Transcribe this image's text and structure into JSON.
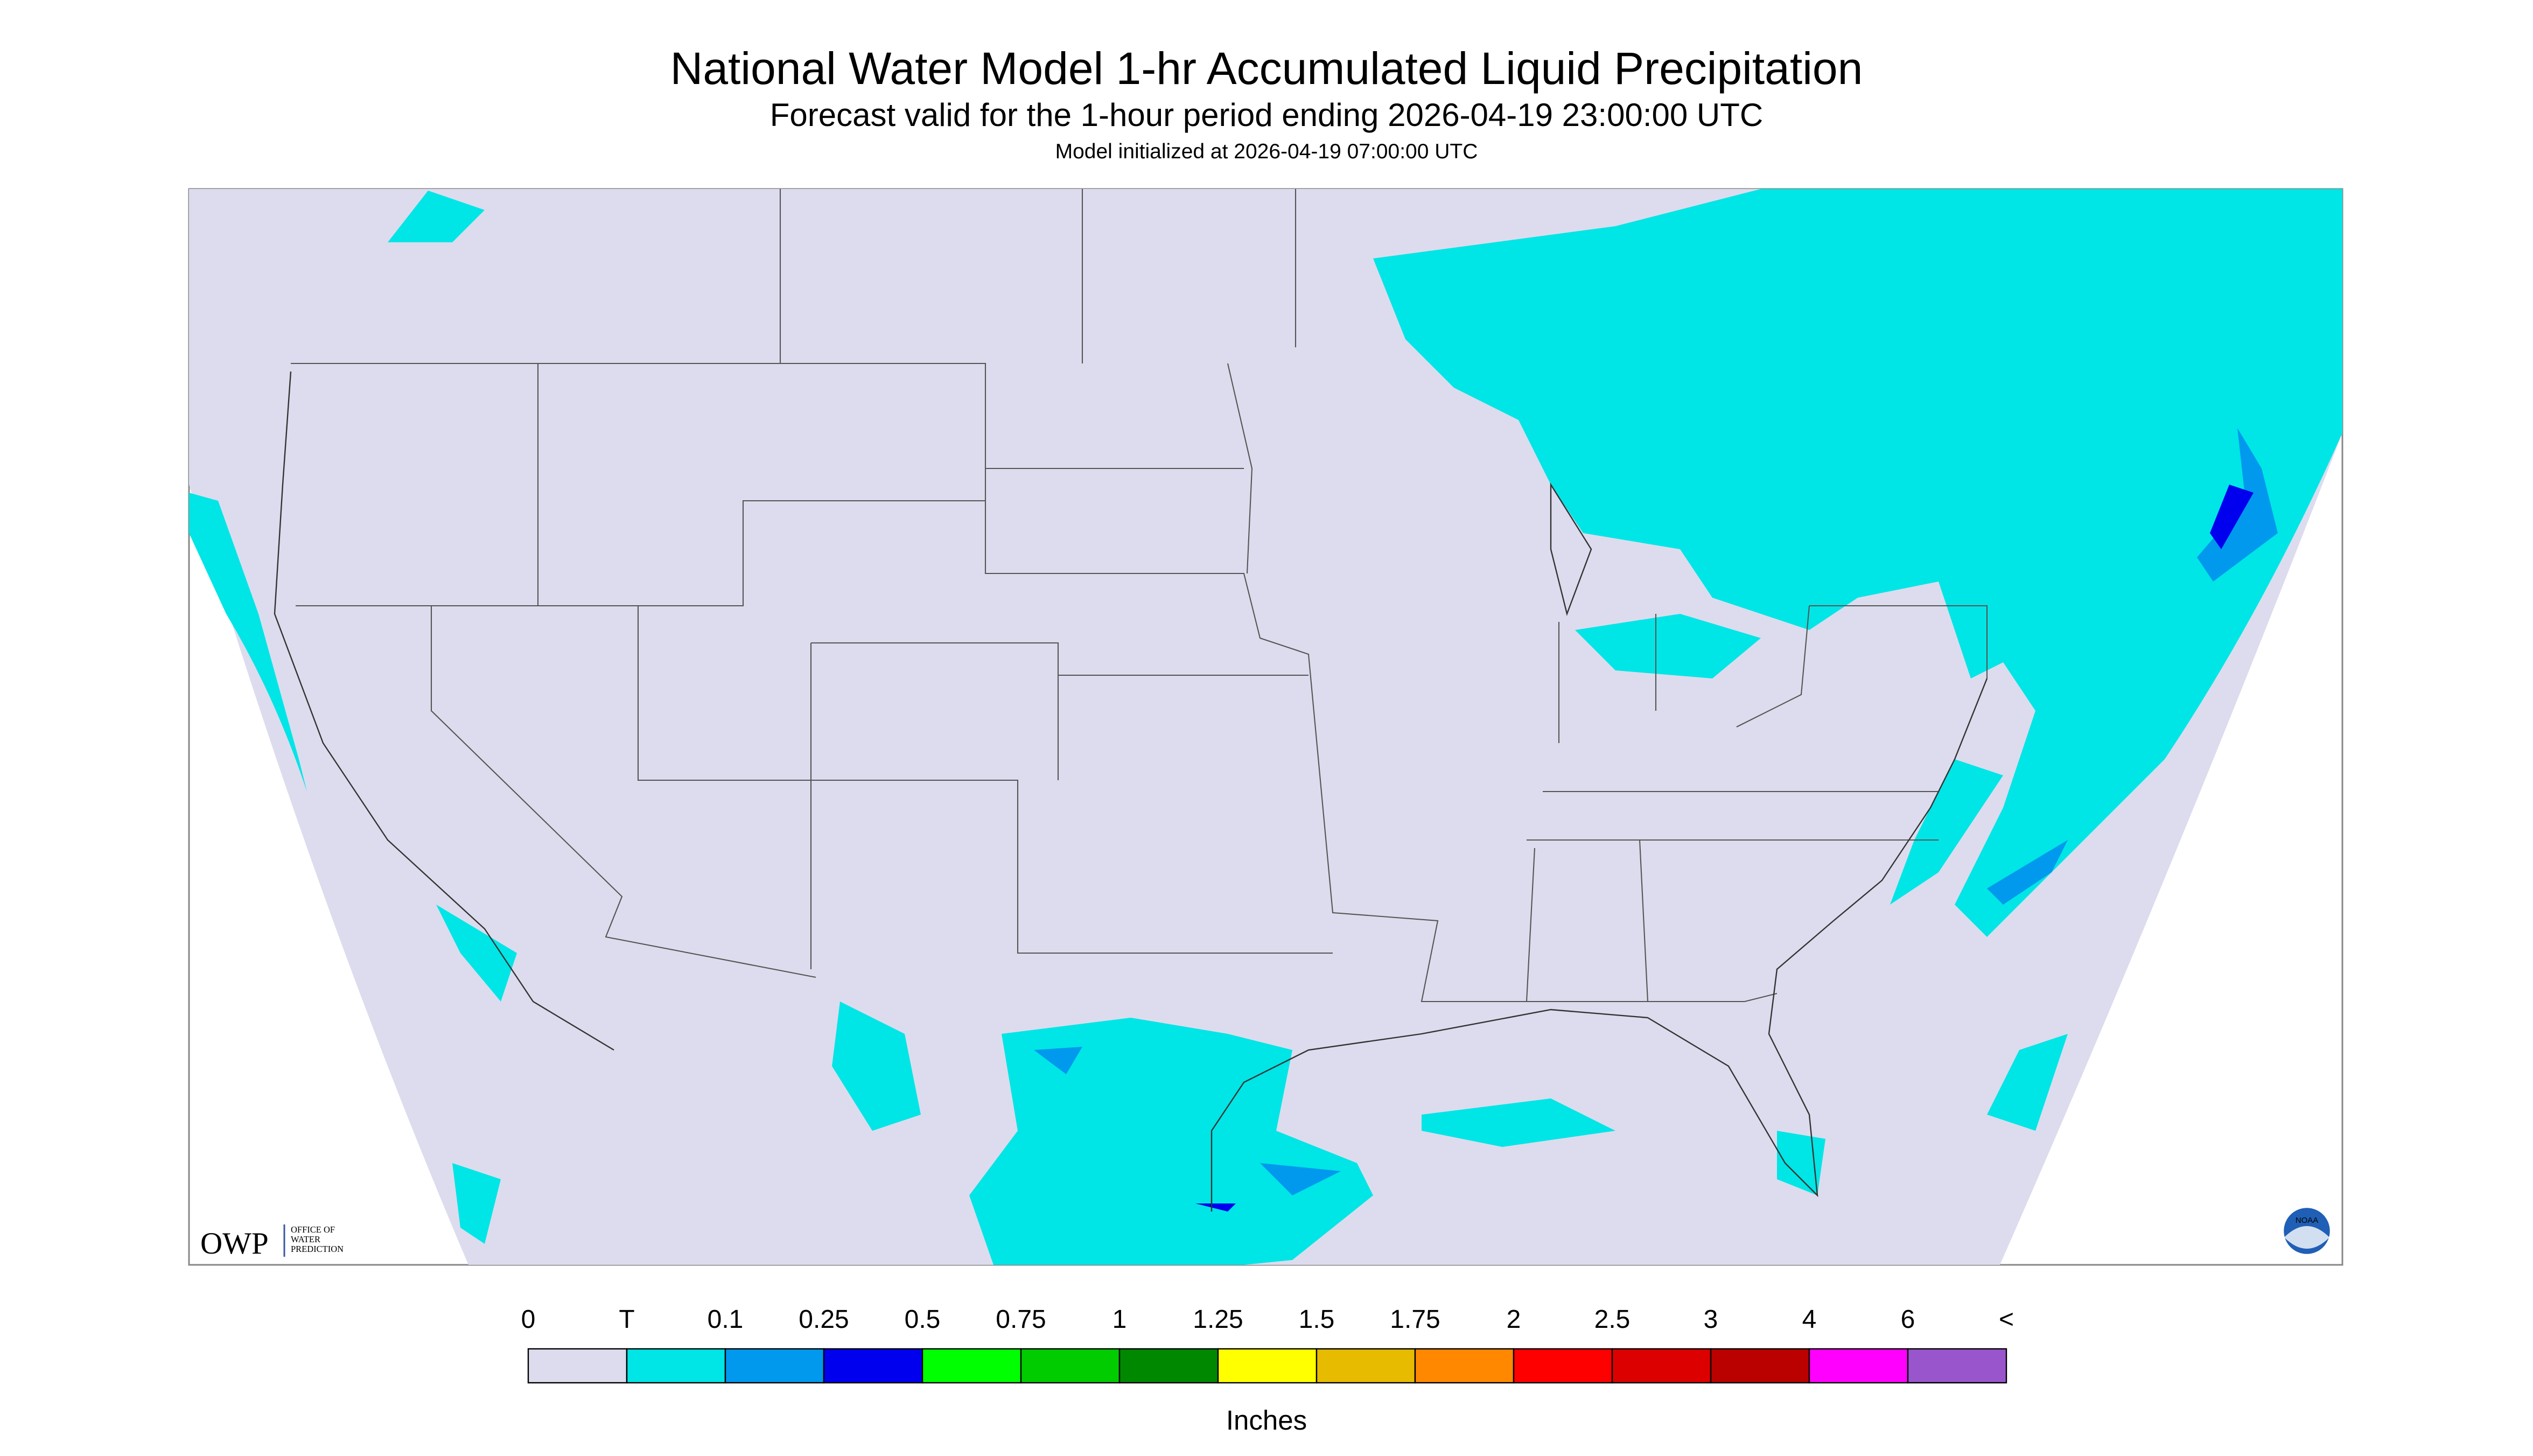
{
  "header": {
    "title": "National Water Model 1-hr Accumulated Liquid Precipitation",
    "subtitle": "Forecast valid for the 1-hour period ending 2026-04-19 23:00:00 UTC",
    "note": "Model initialized at 2026-04-19 07:00:00 UTC"
  },
  "logo": {
    "short": "OWP",
    "lines": [
      "OFFICE OF",
      "WATER",
      "PREDICTION"
    ],
    "agency": "NOAA"
  },
  "legend": {
    "labels": [
      "0",
      "T",
      "0.1",
      "0.25",
      "0.5",
      "0.75",
      "1",
      "1.25",
      "1.5",
      "1.75",
      "2",
      "2.5",
      "3",
      "4",
      "6",
      "<"
    ],
    "colors": [
      "#dcdcee",
      "#00e5e5",
      "#0099ee",
      "#0000ee",
      "#00ff00",
      "#00cc00",
      "#008800",
      "#ffff00",
      "#e6bb00",
      "#ff8800",
      "#ff0000",
      "#dd0000",
      "#bb0000",
      "#ff00ff",
      "#9955cc"
    ],
    "unit": "Inches"
  }
}
